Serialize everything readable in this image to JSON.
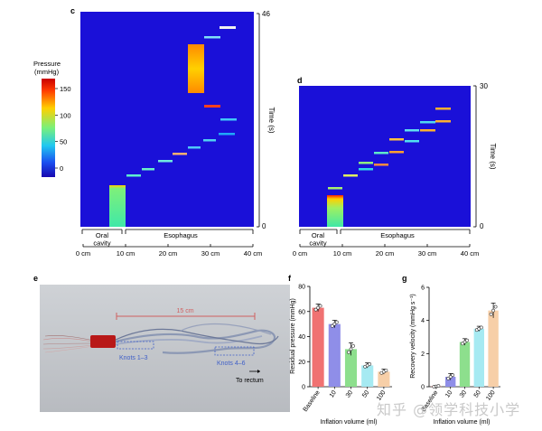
{
  "panels": {
    "c": "c",
    "d": "d",
    "e": "e",
    "f": "f",
    "g": "g"
  },
  "colorbar": {
    "title_line1": "Pressure",
    "title_line2": "(mmHg)",
    "ticks": [
      "150",
      "100",
      "50",
      "0"
    ],
    "colors": [
      "#ff1a00",
      "#ffe000",
      "#2ae6a0",
      "#1aa0ff",
      "#1a10d8"
    ]
  },
  "heatmap_c": {
    "time_max": "46",
    "time_min": "0",
    "time_label": "Time (s)",
    "background": "#1a10d8",
    "regions": {
      "oral": "Oral cavity",
      "esoph": "Esophagus"
    },
    "ticks": [
      "0 cm",
      "10 cm",
      "20 cm",
      "30 cm",
      "40 cm"
    ]
  },
  "heatmap_d": {
    "time_max": "30",
    "time_min": "0",
    "time_label": "Time (s)",
    "regions": {
      "oral": "Oral cavity",
      "esoph": "Esophagus"
    },
    "ticks": [
      "0 cm",
      "10 cm",
      "20 cm",
      "30 cm",
      "40 cm"
    ]
  },
  "photo": {
    "scale": "15 cm",
    "knots1": "Knots 1–3",
    "knots2": "Knots 4–6",
    "rectum": "To rectum"
  },
  "watermark": "知乎 @领学科技小学",
  "chart_data": [
    {
      "type": "bar",
      "title": "",
      "categories": [
        "Baseline",
        "10",
        "30",
        "50",
        "100"
      ],
      "values": [
        63,
        50,
        30,
        17,
        12
      ],
      "errors": [
        3,
        3,
        5,
        2,
        2
      ],
      "colors": [
        "#f07272",
        "#8f8ee8",
        "#8ddf8d",
        "#a6eaf2",
        "#f7cfa8"
      ],
      "xlabel": "Inflation volume (ml)",
      "ylabel": "Residual pressure (mmHg)",
      "ylim": [
        0,
        80
      ],
      "yticks": [
        "0",
        "20",
        "40",
        "60",
        "80"
      ]
    },
    {
      "type": "bar",
      "title": "",
      "categories": [
        "Baseline",
        "10",
        "30",
        "50",
        "100"
      ],
      "values": [
        0.02,
        0.6,
        2.7,
        3.5,
        4.6
      ],
      "errors": [
        0.05,
        0.2,
        0.2,
        0.15,
        0.45
      ],
      "colors": [
        "#f07272",
        "#8f8ee8",
        "#8ddf8d",
        "#a6eaf2",
        "#f7cfa8"
      ],
      "xlabel": "Inflation volume (ml)",
      "ylabel": "Recovery velocity (mmHg s⁻¹)",
      "ylim": [
        0,
        6
      ],
      "yticks": [
        "0",
        "2",
        "4",
        "6"
      ]
    }
  ]
}
